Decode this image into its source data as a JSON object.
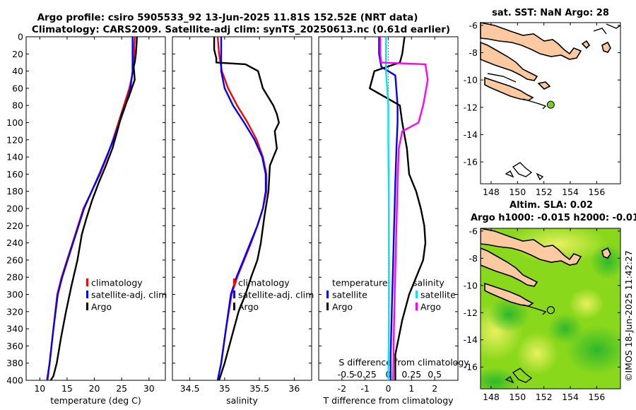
{
  "figure": {
    "title_line1": "Argo profile: csiro 5905533_92 13-Jun-2025 11.81S 152.52E (NRT data)",
    "title_line2": "Climatology: CARS2009. Satellite-adj clim: synTS_20250613.nc (0.61d earlier)",
    "watermark": "©IMOS 18-Jun-2025 11:42:27"
  },
  "colors": {
    "climatology": "#ff0000",
    "satellite_adj": "#0000ff",
    "argo": "#000000",
    "satellite_s": "#00e5ee",
    "salinity_diff": "#ff00ff",
    "land": "#fdc9a0",
    "sla_green": "#6fd400"
  },
  "chart_data": [
    {
      "id": "temperature",
      "type": "line",
      "xlabel": "temperature (deg C)",
      "xlim": [
        7.5,
        33
      ],
      "xticks": [
        10,
        15,
        20,
        25,
        30
      ],
      "ylim": [
        400,
        0
      ],
      "yticks": [
        0,
        20,
        40,
        60,
        80,
        100,
        120,
        140,
        160,
        180,
        200,
        220,
        240,
        260,
        280,
        300,
        320,
        340,
        360,
        380,
        400
      ],
      "legend": [
        "climatology",
        "satellite-adj. clim",
        "Argo"
      ],
      "series": [
        {
          "name": "climatology",
          "color": "#ff0000",
          "x": [
            27.4,
            27.3,
            27.3,
            27.1,
            26.4,
            25.4,
            24.4,
            23.4,
            22.3,
            21.0,
            19.5,
            18.0,
            17.0,
            16.0,
            15.0,
            14.0,
            13.2,
            12.5,
            11.8,
            11.3
          ],
          "y": [
            0,
            10,
            20,
            40,
            60,
            80,
            100,
            120,
            140,
            160,
            180,
            200,
            220,
            240,
            260,
            280,
            300,
            340,
            380,
            400
          ]
        },
        {
          "name": "satellite-adj. clim",
          "color": "#0000ff",
          "x": [
            27.0,
            27.0,
            27.0,
            27.0,
            26.6,
            25.7,
            24.6,
            23.5,
            22.2,
            20.9,
            19.5,
            18.1,
            17.1,
            16.1,
            15.1,
            14.1,
            13.3,
            12.5,
            11.8,
            11.4
          ],
          "y": [
            0,
            10,
            20,
            40,
            60,
            80,
            100,
            120,
            140,
            160,
            180,
            200,
            220,
            240,
            260,
            280,
            300,
            340,
            380,
            400
          ]
        },
        {
          "name": "Argo",
          "color": "#000000",
          "x": [
            27.8,
            27.7,
            27.6,
            27.4,
            27.2,
            27.4,
            26.3,
            25.0,
            24.2,
            23.3,
            22.1,
            20.8,
            19.6,
            18.6,
            17.7,
            16.9,
            15.8,
            14.8,
            13.9,
            13.1,
            12.5,
            12.0
          ],
          "y": [
            0,
            10,
            20,
            30,
            35,
            50,
            70,
            90,
            110,
            130,
            150,
            170,
            190,
            210,
            230,
            260,
            290,
            320,
            350,
            380,
            395,
            400
          ]
        }
      ]
    },
    {
      "id": "salinity",
      "type": "line",
      "xlabel": "salinity",
      "xlim": [
        34.25,
        36.25
      ],
      "xticks": [
        34.5,
        35,
        35.5,
        36
      ],
      "ylim": [
        400,
        0
      ],
      "legend": [
        "climatology",
        "satellite-adj. clim",
        "Argo"
      ],
      "series": [
        {
          "name": "climatology",
          "color": "#ff0000",
          "x": [
            34.9,
            34.92,
            34.96,
            35.05,
            35.18,
            35.33,
            35.46,
            35.55,
            35.6,
            35.6,
            35.55,
            35.47,
            35.38,
            35.28,
            35.18,
            35.1,
            35.02,
            34.95,
            34.9
          ],
          "y": [
            0,
            20,
            40,
            60,
            80,
            100,
            120,
            140,
            160,
            180,
            200,
            220,
            240,
            260,
            280,
            300,
            340,
            380,
            400
          ]
        },
        {
          "name": "satellite-adj. clim",
          "color": "#0000ff",
          "x": [
            34.95,
            34.95,
            34.95,
            35.0,
            35.12,
            35.28,
            35.43,
            35.54,
            35.59,
            35.59,
            35.55,
            35.47,
            35.37,
            35.27,
            35.17,
            35.09,
            35.02,
            34.95,
            34.9
          ],
          "y": [
            0,
            20,
            40,
            60,
            80,
            100,
            120,
            140,
            160,
            180,
            200,
            220,
            240,
            260,
            280,
            300,
            340,
            380,
            400
          ]
        },
        {
          "name": "Argo",
          "color": "#000000",
          "x": [
            34.85,
            34.85,
            34.88,
            34.88,
            35.3,
            35.48,
            35.55,
            35.7,
            35.75,
            35.78,
            35.72,
            35.75,
            35.65,
            35.63,
            35.57,
            35.52,
            35.47,
            35.38,
            35.3,
            35.2,
            35.1,
            35.0,
            34.92
          ],
          "y": [
            0,
            15,
            25,
            30,
            32,
            40,
            60,
            80,
            90,
            100,
            110,
            130,
            150,
            180,
            210,
            240,
            260,
            280,
            300,
            320,
            350,
            380,
            400
          ]
        }
      ]
    },
    {
      "id": "difference",
      "type": "line",
      "xlabel": "T difference from climatology",
      "xlabel_top": "S difference from climatology",
      "xlim": [
        -3,
        3
      ],
      "xticks": [
        -2,
        -1,
        0,
        1,
        2
      ],
      "s_xticks_labels": [
        "-0.5",
        "-0.25",
        "0",
        "0.25",
        "0.5"
      ],
      "ylim": [
        400,
        0
      ],
      "legend_left_title": "temperature",
      "legend_left": [
        "satellite",
        "Argo"
      ],
      "legend_right_title": "salinity",
      "legend_right": [
        "satellite",
        "Argo"
      ],
      "series": [
        {
          "name": "temperature satellite",
          "color": "#0000ff",
          "x": [
            -0.4,
            -0.4,
            -0.3,
            0.3,
            0.4,
            0.4,
            0.35,
            0.3,
            0.25,
            0.2,
            0.15,
            0.1,
            0.1
          ],
          "y": [
            0,
            20,
            35,
            45,
            80,
            100,
            130,
            170,
            220,
            270,
            320,
            370,
            400
          ]
        },
        {
          "name": "temperature Argo",
          "color": "#000000",
          "x": [
            0.7,
            0.6,
            0.5,
            -0.6,
            -0.8,
            0.5,
            0.6,
            0.8,
            0.9,
            1.2,
            1.4,
            1.55,
            1.6,
            1.5,
            1.2,
            0.9,
            0.6,
            0.3,
            0.3
          ],
          "y": [
            0,
            20,
            30,
            40,
            60,
            80,
            100,
            130,
            160,
            180,
            200,
            220,
            240,
            260,
            280,
            300,
            330,
            370,
            400
          ]
        },
        {
          "name": "salinity satellite",
          "color": "#00e5ee",
          "x": [
            -0.1,
            -0.1,
            -0.1,
            -0.05,
            0,
            0,
            0.02,
            0.03,
            0.02,
            0
          ],
          "y": [
            0,
            20,
            40,
            60,
            80,
            120,
            200,
            280,
            340,
            400
          ]
        },
        {
          "name": "salinity Argo",
          "color": "#ff00ff",
          "x": [
            -0.35,
            -0.35,
            -0.3,
            1.6,
            1.7,
            1.5,
            1.3,
            0.6,
            0.45,
            0.4,
            0.35,
            0.3,
            0.25,
            0.2
          ],
          "y": [
            0,
            20,
            30,
            32,
            50,
            80,
            100,
            110,
            130,
            170,
            220,
            270,
            330,
            400
          ]
        }
      ]
    }
  ],
  "maps": {
    "sst": {
      "title": "sat. SST: NaN Argo: 28",
      "xticks": [
        "148",
        "150",
        "152",
        "154",
        "156"
      ],
      "yticks": [
        "-6",
        "-8",
        "-10",
        "-12",
        "-14",
        "-16"
      ]
    },
    "sla": {
      "title_line1": "Altim. SLA: 0.02",
      "title_line2": "Argo h1000: -0.015 h2000: -0.01",
      "xticks": [
        "148",
        "150",
        "152",
        "154",
        "156"
      ],
      "yticks": [
        "-6",
        "-8",
        "-10",
        "-12",
        "-14",
        "-16"
      ]
    },
    "xlim": [
      147.2,
      157.8
    ],
    "ylim": [
      -17.6,
      -5.8
    ],
    "argo_position": {
      "lon": 152.52,
      "lat": -11.81
    }
  }
}
